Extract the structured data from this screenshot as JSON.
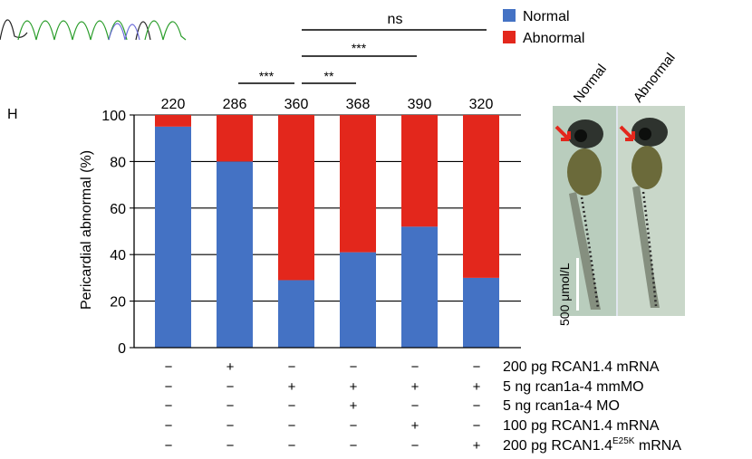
{
  "panel_label": "H",
  "legend": [
    {
      "label": "Normal",
      "color": "#4472C4"
    },
    {
      "label": "Abnormal",
      "color": "#E3271C"
    }
  ],
  "significance": {
    "ns": "ns",
    "triple_a": "***",
    "triple_b": "***",
    "double": "**",
    "triple_c": "***"
  },
  "chart_data": {
    "type": "bar",
    "stacked": true,
    "ylabel": "Pericardial abnormal (%)",
    "ylim": [
      0,
      100
    ],
    "yticks": [
      0,
      20,
      40,
      60,
      80,
      100
    ],
    "grid": true,
    "n_labels": [
      "220",
      "286",
      "360",
      "368",
      "390",
      "320"
    ],
    "series": [
      {
        "name": "Normal",
        "color": "#4472C4",
        "values": [
          95,
          80,
          29,
          41,
          52,
          30
        ]
      },
      {
        "name": "Abnormal",
        "color": "#E3271C",
        "values": [
          5,
          20,
          71,
          59,
          48,
          70
        ]
      }
    ],
    "treatments": [
      {
        "label": "200 pg RCAN1.4 mRNA",
        "marks": [
          "−",
          "+",
          "−",
          "−",
          "−",
          "−"
        ]
      },
      {
        "label": "5 ng rcan1a-4 mmMO",
        "marks": [
          "−",
          "−",
          "+",
          "+",
          "+",
          "+"
        ]
      },
      {
        "label": "5 ng rcan1a-4 MO",
        "marks": [
          "−",
          "−",
          "−",
          "+",
          "−",
          "−"
        ]
      },
      {
        "label": "100 pg RCAN1.4 mRNA",
        "marks": [
          "−",
          "−",
          "−",
          "−",
          "+",
          "−"
        ]
      },
      {
        "label": "200 pg RCAN1.4",
        "label_sup": "E25K",
        "label_tail": " mRNA",
        "marks": [
          "−",
          "−",
          "−",
          "−",
          "−",
          "+"
        ]
      }
    ]
  },
  "photo": {
    "label_left": "Normal",
    "label_right": "Abnormal",
    "scale_text": "500 μmol/L"
  }
}
